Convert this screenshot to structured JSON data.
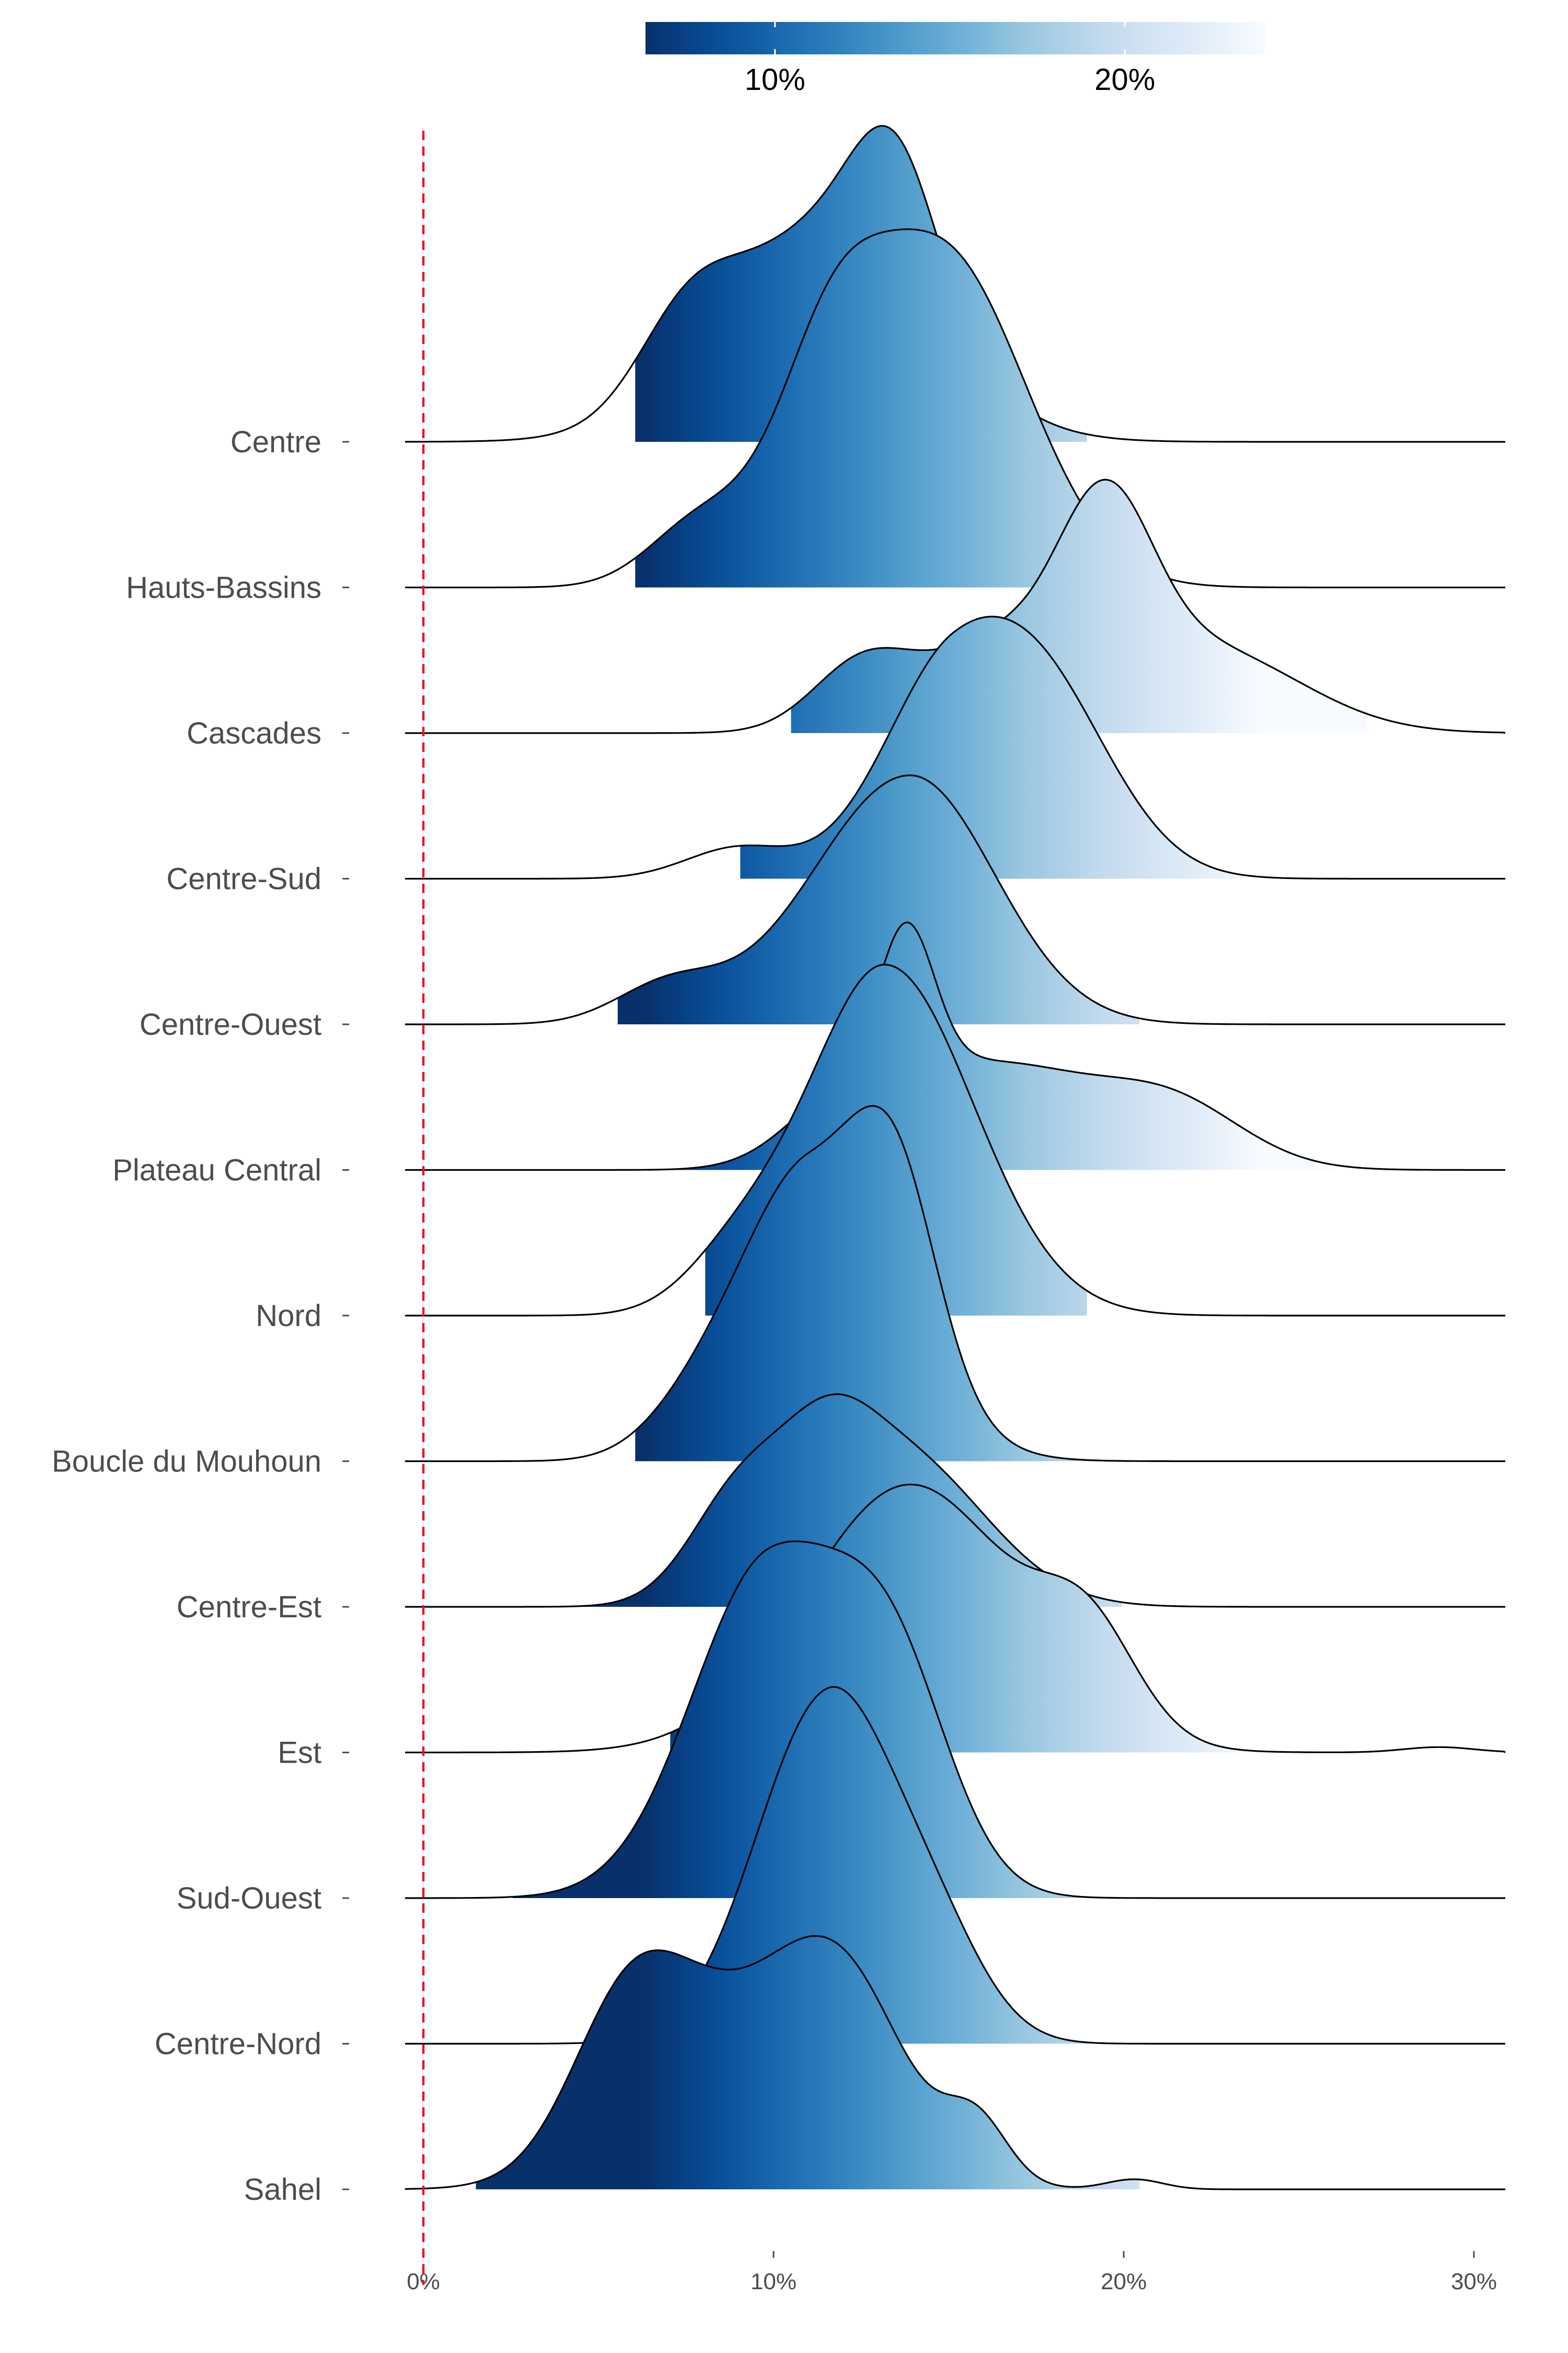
{
  "chart_data": {
    "type": "ridgeline",
    "title": "",
    "xlabel": "",
    "ylabel": "",
    "x_unit": "percent",
    "xlim": [
      -0.5,
      31
    ],
    "x_ticks": [
      0,
      10,
      20,
      30
    ],
    "x_tick_labels": [
      "0%",
      "10%",
      "20%",
      "30%"
    ],
    "reference_line": {
      "x": 0,
      "color": "#e41a1c",
      "style": "dashed"
    },
    "color_scale": {
      "palette": "Blues",
      "domain": [
        6.3,
        24
      ],
      "ticks": [
        10,
        20
      ],
      "tick_labels": [
        "10%",
        "20%"
      ],
      "placement": "top"
    },
    "grid": false,
    "series": [
      {
        "name": "Centre",
        "peak": 11.7,
        "sd_left": 3.0,
        "sd_right": 2.8,
        "height": 2.17,
        "fill_from": 6.0,
        "fill_to": 19.0,
        "shoulders": [
          [
            7.5,
            0.35,
            1.4
          ],
          [
            13.5,
            0.6,
            1.2
          ]
        ]
      },
      {
        "name": "Hauts-Bassins",
        "peak": 14.8,
        "sd_left": 2.4,
        "sd_right": 2.4,
        "height": 2.46,
        "fill_from": 6.0,
        "fill_to": 19.5,
        "shoulders": [
          [
            8,
            0.2,
            1.5
          ],
          [
            11.5,
            0.5,
            1.5
          ]
        ]
      },
      {
        "name": "Cascades",
        "peak": 17.0,
        "sd_left": 2.5,
        "sd_right": 3.8,
        "height": 1.74,
        "fill_from": 10.5,
        "fill_to": 27.0,
        "shoulders": [
          [
            12.5,
            0.6,
            1.4
          ],
          [
            19.5,
            1.5,
            1.3
          ],
          [
            23,
            0.55,
            2.5
          ]
        ]
      },
      {
        "name": "Centre-Sud",
        "peak": 15.1,
        "sd_left": 2.0,
        "sd_right": 2.5,
        "height": 1.8,
        "fill_from": 9.0,
        "fill_to": 23.5,
        "shoulders": [
          [
            9,
            0.15,
            1.5
          ],
          [
            18,
            0.55,
            2
          ]
        ]
      },
      {
        "name": "Centre-Ouest",
        "peak": 13.9,
        "sd_left": 2.8,
        "sd_right": 2.4,
        "height": 1.71,
        "fill_from": 5.5,
        "fill_to": 20.5,
        "shoulders": [
          [
            7,
            0.15,
            1.5
          ]
        ]
      },
      {
        "name": "Plateau Central",
        "peak": 16.2,
        "sd_left": 2.5,
        "sd_right": 3.2,
        "height": 1.7,
        "fill_from": 6.0,
        "fill_to": 26.0,
        "shoulders": [
          [
            13.8,
            1.4,
            0.8
          ],
          [
            12,
            0.6,
            1.6
          ],
          [
            21.5,
            0.5,
            2
          ]
        ]
      },
      {
        "name": "Nord",
        "peak": 13.2,
        "sd_left": 2.2,
        "sd_right": 2.5,
        "height": 2.41,
        "fill_from": 8.0,
        "fill_to": 19.0,
        "shoulders": [
          [
            9,
            0.15,
            1.5
          ]
        ]
      },
      {
        "name": "Boucle du Mouhoun",
        "peak": 11.0,
        "sd_left": 1.8,
        "sd_right": 2.4,
        "height": 2.44,
        "fill_from": 6.0,
        "fill_to": 22.0,
        "shoulders": [
          [
            13.5,
            0.6,
            1.2
          ],
          [
            8,
            0.2,
            1.5
          ]
        ]
      },
      {
        "name": "Centre-Est",
        "peak": 13.6,
        "sd_left": 2.5,
        "sd_right": 2.4,
        "height": 1.46,
        "fill_from": 4.5,
        "fill_to": 20.0,
        "shoulders": [
          [
            9,
            0.65,
            1.4
          ],
          [
            11.5,
            0.55,
            1.3
          ]
        ]
      },
      {
        "name": "Est",
        "peak": 13.9,
        "sd_left": 3.0,
        "sd_right": 3.0,
        "height": 1.84,
        "fill_from": 7.0,
        "fill_to": 24.0,
        "shoulders": [
          [
            19,
            0.35,
            1.4
          ],
          [
            29,
            0.02,
            1
          ]
        ]
      },
      {
        "name": "Sud-Ouest",
        "peak": 9.9,
        "sd_left": 2.2,
        "sd_right": 2.5,
        "height": 2.45,
        "fill_from": 2.5,
        "fill_to": 19.0,
        "shoulders": [
          [
            13.5,
            0.5,
            1.6
          ]
        ]
      },
      {
        "name": "Centre-Nord",
        "peak": 11.5,
        "sd_left": 2.0,
        "sd_right": 1.8,
        "height": 2.45,
        "fill_from": 4.5,
        "fill_to": 20.0,
        "shoulders": [
          [
            14.5,
            0.3,
            1.5
          ]
        ]
      },
      {
        "name": "Sahel",
        "peak": 8.7,
        "sd_left": 2.6,
        "sd_right": 3.0,
        "height": 1.74,
        "fill_from": 1.5,
        "fill_to": 20.5,
        "shoulders": [
          [
            5.8,
            0.8,
            1.6
          ],
          [
            12,
            0.9,
            1.8
          ],
          [
            15.8,
            0.35,
            0.9
          ],
          [
            20.3,
            0.06,
            0.8
          ]
        ]
      }
    ]
  }
}
